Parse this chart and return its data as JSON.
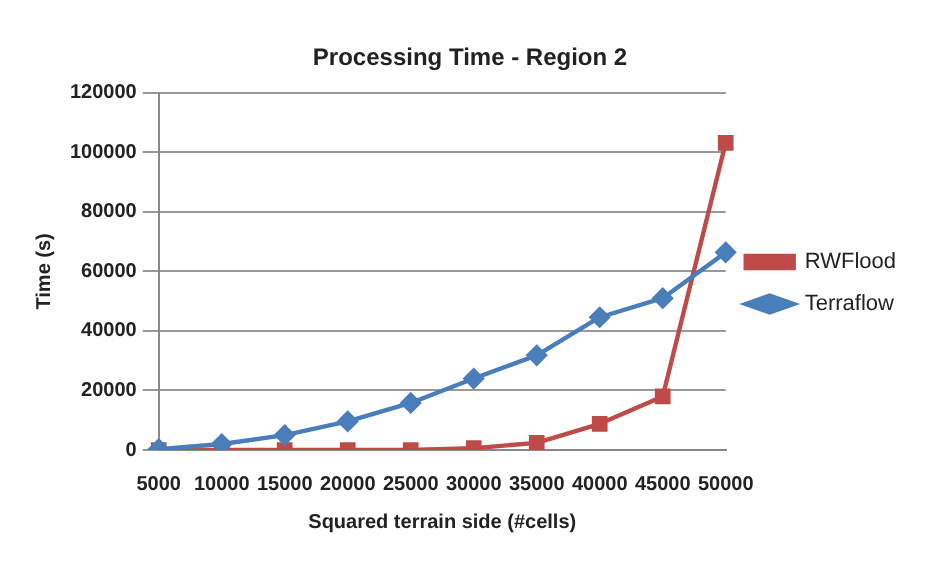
{
  "chart_data": {
    "type": "line",
    "title": "Processing Time - Region 2",
    "xlabel": "Squared terrain side (#cells)",
    "ylabel": "Time (s)",
    "categories": [
      "5000",
      "10000",
      "15000",
      "20000",
      "25000",
      "30000",
      "35000",
      "40000",
      "45000",
      "50000"
    ],
    "series": [
      {
        "name": "RWFlood",
        "color": "#be4b48",
        "marker": "square",
        "values": [
          0,
          0,
          0,
          0,
          0,
          600,
          2400,
          8800,
          18000,
          103200
        ]
      },
      {
        "name": "Terraflow",
        "color": "#4a7ebb",
        "marker": "diamond",
        "values": [
          300,
          2000,
          5000,
          9600,
          15800,
          24000,
          31800,
          44600,
          51000,
          66400
        ]
      }
    ],
    "ylim": [
      0,
      120000
    ],
    "yticks": [
      0,
      20000,
      40000,
      60000,
      80000,
      100000,
      120000
    ],
    "grid": "y",
    "legend": "right",
    "line_style": "solid"
  }
}
